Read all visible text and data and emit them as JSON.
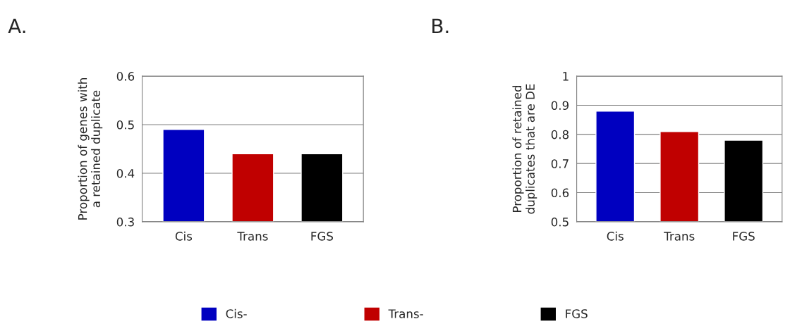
{
  "chart_data": [
    {
      "type": "bar",
      "title": "A.",
      "ylabel": "Proportion of genes with\na retained duplicate",
      "categories": [
        "Cis",
        "Trans",
        "FGS"
      ],
      "series": [
        {
          "name": "Cis-",
          "color": "#0000c0",
          "values": [
            0.49,
            null,
            null
          ]
        },
        {
          "name": "Trans-",
          "color": "#c00000",
          "values": [
            null,
            0.44,
            null
          ]
        },
        {
          "name": "FGS",
          "color": "#000000",
          "values": [
            null,
            null,
            0.44
          ]
        }
      ],
      "ylim": [
        0.3,
        0.6
      ],
      "yticks": [
        0.3,
        0.4,
        0.5,
        0.6
      ],
      "grid": "y",
      "legend": "bottom"
    },
    {
      "type": "bar",
      "title": "B.",
      "ylabel": "Proportion of retained\nduplicates that are DE",
      "categories": [
        "Cis",
        "Trans",
        "FGS"
      ],
      "series": [
        {
          "color": "#0000c0",
          "values": [
            0.88,
            null,
            null
          ]
        },
        {
          "color": "#c00000",
          "values": [
            null,
            0.81,
            null
          ]
        },
        {
          "color": "#000000",
          "values": [
            null,
            null,
            0.78
          ]
        }
      ],
      "ylim": [
        0.5,
        1
      ],
      "yticks": [
        0.5,
        0.6,
        0.7,
        0.8,
        0.9,
        1
      ],
      "grid": "y"
    }
  ]
}
